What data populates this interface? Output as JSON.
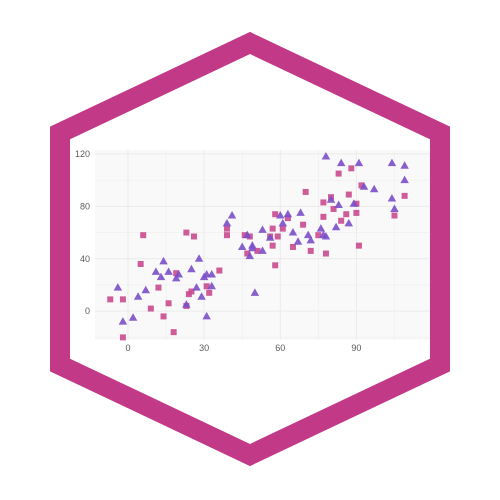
{
  "colors": {
    "hex_border": "#c23a87",
    "hex_fill": "#ffffff",
    "plot_bg": "#f9f9f9",
    "grid": "#ebebeb",
    "square_points": "#c94a8e",
    "triangle_points": "#7b4fc9"
  },
  "chart_data": {
    "type": "scatter",
    "title": "",
    "xlabel": "",
    "ylabel": "",
    "xlim": [
      -13,
      119
    ],
    "ylim": [
      -22,
      123
    ],
    "x_ticks": [
      0,
      30,
      60,
      90
    ],
    "y_ticks": [
      0,
      40,
      80,
      120
    ],
    "x_tick_labels": [
      "0",
      "30",
      "60",
      "90"
    ],
    "y_tick_labels": [
      "0",
      "40",
      "80",
      "120"
    ],
    "grid": true,
    "legend": "none",
    "series": [
      {
        "marker": "square",
        "color": "#c94a8e",
        "points": [
          [
            -7,
            9
          ],
          [
            -2,
            9
          ],
          [
            -2,
            -20
          ],
          [
            5,
            36
          ],
          [
            6,
            58
          ],
          [
            9,
            2
          ],
          [
            12,
            18
          ],
          [
            14,
            -4
          ],
          [
            16,
            6
          ],
          [
            18,
            -16
          ],
          [
            19,
            29
          ],
          [
            23,
            60
          ],
          [
            23,
            4
          ],
          [
            24,
            13
          ],
          [
            25,
            15
          ],
          [
            26,
            57
          ],
          [
            31,
            19
          ],
          [
            32,
            14
          ],
          [
            36,
            31
          ],
          [
            39,
            58
          ],
          [
            39,
            63
          ],
          [
            46,
            58
          ],
          [
            47,
            44
          ],
          [
            48,
            57
          ],
          [
            51,
            46
          ],
          [
            56,
            57
          ],
          [
            57,
            50
          ],
          [
            57,
            63
          ],
          [
            58,
            74
          ],
          [
            58,
            35
          ],
          [
            59,
            57
          ],
          [
            61,
            63
          ],
          [
            63,
            71
          ],
          [
            65,
            49
          ],
          [
            69,
            66
          ],
          [
            70,
            91
          ],
          [
            72,
            46
          ],
          [
            75,
            58
          ],
          [
            77,
            72
          ],
          [
            77,
            83
          ],
          [
            78,
            44
          ],
          [
            80,
            87
          ],
          [
            81,
            78
          ],
          [
            83,
            105
          ],
          [
            84,
            69
          ],
          [
            86,
            74
          ],
          [
            87,
            89
          ],
          [
            88,
            109
          ],
          [
            90,
            82
          ],
          [
            90,
            75
          ],
          [
            91,
            50
          ],
          [
            92,
            96
          ],
          [
            105,
            73
          ],
          [
            109,
            88
          ]
        ]
      },
      {
        "marker": "triangle",
        "color": "#7b4fc9",
        "points": [
          [
            -4,
            18
          ],
          [
            -2,
            -8
          ],
          [
            2,
            -5
          ],
          [
            4,
            11
          ],
          [
            7,
            16
          ],
          [
            11,
            30
          ],
          [
            13,
            26
          ],
          [
            14,
            38
          ],
          [
            16,
            30
          ],
          [
            19,
            25
          ],
          [
            20,
            28
          ],
          [
            23,
            5
          ],
          [
            25,
            32
          ],
          [
            27,
            18
          ],
          [
            28,
            40
          ],
          [
            29,
            11
          ],
          [
            30,
            26
          ],
          [
            31,
            28
          ],
          [
            31,
            -4
          ],
          [
            33,
            19
          ],
          [
            33,
            28
          ],
          [
            39,
            67
          ],
          [
            41,
            73
          ],
          [
            45,
            49
          ],
          [
            47,
            58
          ],
          [
            48,
            42
          ],
          [
            49,
            48
          ],
          [
            49,
            50
          ],
          [
            50,
            14
          ],
          [
            53,
            46
          ],
          [
            53,
            62
          ],
          [
            56,
            56
          ],
          [
            60,
            73
          ],
          [
            61,
            67
          ],
          [
            63,
            74
          ],
          [
            65,
            60
          ],
          [
            67,
            53
          ],
          [
            68,
            75
          ],
          [
            71,
            58
          ],
          [
            72,
            54
          ],
          [
            76,
            63
          ],
          [
            77,
            58
          ],
          [
            78,
            118
          ],
          [
            78,
            57
          ],
          [
            80,
            85
          ],
          [
            82,
            64
          ],
          [
            83,
            81
          ],
          [
            84,
            113
          ],
          [
            87,
            67
          ],
          [
            89,
            82
          ],
          [
            91,
            113
          ],
          [
            93,
            95
          ],
          [
            97,
            93
          ],
          [
            104,
            113
          ],
          [
            104,
            86
          ],
          [
            105,
            78
          ],
          [
            109,
            100
          ],
          [
            109,
            111
          ]
        ]
      }
    ]
  }
}
